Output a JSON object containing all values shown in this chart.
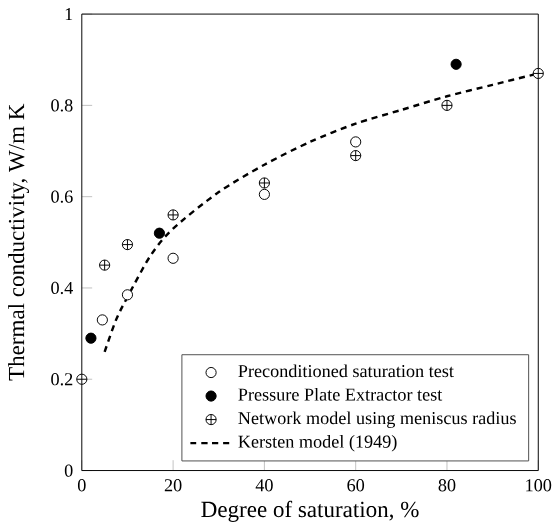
{
  "chart_data": {
    "type": "scatter",
    "xlabel": "Degree of saturation, %",
    "ylabel": "Thermal conductivity, W/m K",
    "xlim": [
      0,
      100
    ],
    "ylim": [
      0,
      1
    ],
    "xticks": [
      0,
      20,
      40,
      60,
      80,
      100
    ],
    "yticks": [
      0,
      0.2,
      0.4,
      0.6,
      0.8,
      1
    ],
    "legend": "bottom right",
    "grid": false,
    "series": [
      {
        "name": "Preconditioned saturation test",
        "marker": "circle",
        "color": "#ffffff",
        "x": [
          4.5,
          10,
          20,
          40,
          60
        ],
        "values": [
          0.33,
          0.385,
          0.465,
          0.605,
          0.72
        ]
      },
      {
        "name": "Pressure Plate Extractor test",
        "marker": "circle",
        "color": "#000000",
        "x": [
          2,
          17,
          82
        ],
        "values": [
          0.29,
          0.52,
          0.89
        ]
      },
      {
        "name": "Network model using meniscus radius",
        "marker": "cross",
        "color": "#ffffff",
        "x": [
          0,
          5,
          10,
          20,
          40,
          60,
          80,
          100
        ],
        "values": [
          0.2,
          0.45,
          0.495,
          0.56,
          0.63,
          0.69,
          0.8,
          0.87
        ]
      },
      {
        "name": "Kersten model (1949)",
        "type": "line",
        "line_style": "dashed",
        "marker": "none",
        "color": "#000000",
        "x": [
          5,
          7.5,
          10,
          15,
          20,
          30,
          40,
          50,
          60,
          70,
          80,
          90,
          100
        ],
        "values": [
          0.26,
          0.33,
          0.38,
          0.47,
          0.53,
          0.61,
          0.67,
          0.72,
          0.76,
          0.79,
          0.82,
          0.845,
          0.87
        ]
      }
    ]
  }
}
